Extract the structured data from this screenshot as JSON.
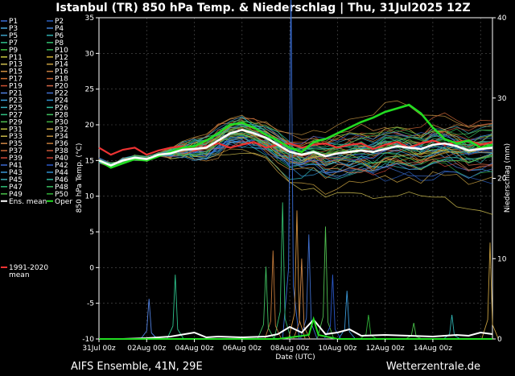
{
  "header": {
    "title": "Istanbul  (TR)  850 hPa Temp. & Niederschlag | Thu, 31Jul2025 12Z"
  },
  "footer": {
    "model": "AIFS Ensemble, 41N, 29E",
    "brand": "Wetterzentrale.de"
  },
  "chart_data": {
    "type": "line",
    "title": "Istanbul  (TR)  850 hPa Temp. & Niederschlag | Thu, 31Jul2025 12Z",
    "xlabel": "Date (UTC)",
    "ylabel_left": "850 hPa Temp. (°C)",
    "ylabel_right": "Niederschlag (mm)",
    "ylim_left": [
      -10,
      35
    ],
    "ylim_right": [
      0,
      40
    ],
    "xlim_days": [
      0,
      16.5
    ],
    "grid": true,
    "legend_placement": "left-outside",
    "x_tick_labels": [
      "31Jul 00z",
      "02Aug 00z",
      "04Aug 00z",
      "06Aug 00z",
      "08Aug 00z",
      "10Aug 00z",
      "12Aug 00z",
      "14Aug 00z"
    ],
    "y_left_ticks": [
      -10,
      -5,
      0,
      5,
      10,
      15,
      20,
      25,
      30,
      35
    ],
    "y_right_ticks": [
      0,
      10,
      20,
      30,
      40
    ],
    "members": [
      "P1",
      "P2",
      "P3",
      "P4",
      "P5",
      "P6",
      "P7",
      "P8",
      "P9",
      "P10",
      "P11",
      "P12",
      "P13",
      "P14",
      "P15",
      "P16",
      "P17",
      "P18",
      "P19",
      "P20",
      "P21",
      "P22",
      "P23",
      "P24",
      "P25",
      "P26",
      "P27",
      "P28",
      "P29",
      "P30",
      "P31",
      "P32",
      "P33",
      "P34",
      "P35",
      "P36",
      "P37",
      "P38",
      "P39",
      "P40",
      "P41",
      "P42",
      "P43",
      "P44",
      "P45",
      "P46",
      "P47",
      "P48",
      "P49",
      "P50"
    ],
    "member_colors": [
      "#3a6fd8",
      "#2a5fc0",
      "#4aa8e0",
      "#3f7fd5",
      "#3ca0c8",
      "#2fb0b0",
      "#2ec08a",
      "#33c070",
      "#40c040",
      "#30b050",
      "#c8c840",
      "#d0b030",
      "#d0c050",
      "#c8a040",
      "#d09040",
      "#c88040",
      "#d07030",
      "#c86030",
      "#d05030",
      "#d86848",
      "#5080e0",
      "#4070d0",
      "#3aa0e0",
      "#2f90d0",
      "#3cb0c0",
      "#2fc0a0",
      "#30c080",
      "#40c060",
      "#50c050",
      "#40b040",
      "#c0c040",
      "#d0a840",
      "#c8b848",
      "#c09040",
      "#d08848",
      "#c07838",
      "#d06838",
      "#c85838",
      "#d04838",
      "#c84030",
      "#3a68d0",
      "#2a58c8",
      "#3a98d8",
      "#3090d0",
      "#40b0b8",
      "#30b8a0",
      "#30c078",
      "#38c060",
      "#48c048",
      "#30b038"
    ],
    "ens_mean_label": "Ens. mean",
    "oper_label": "Oper",
    "clim_label": "1991-2020 mean",
    "ens_mean_color": "#ffffff",
    "oper_color": "#22dd22",
    "clim_color": "#ee3333",
    "ens_mean_temp": [
      [
        0,
        15
      ],
      [
        0.5,
        14.3
      ],
      [
        1,
        15
      ],
      [
        1.5,
        15.4
      ],
      [
        2,
        15.2
      ],
      [
        2.5,
        15.8
      ],
      [
        3,
        16
      ],
      [
        3.5,
        16.5
      ],
      [
        4,
        16.6
      ],
      [
        4.5,
        16.8
      ],
      [
        5,
        17.8
      ],
      [
        5.5,
        18.8
      ],
      [
        6,
        19.3
      ],
      [
        6.5,
        18.8
      ],
      [
        7,
        18.2
      ],
      [
        7.5,
        17.2
      ],
      [
        8,
        16.2
      ],
      [
        8.5,
        15.8
      ],
      [
        9,
        16.2
      ],
      [
        9.5,
        15.6
      ],
      [
        10,
        16
      ],
      [
        10.5,
        16.2
      ],
      [
        11,
        16.4
      ],
      [
        11.5,
        16.2
      ],
      [
        12,
        16.6
      ],
      [
        12.5,
        17
      ],
      [
        13,
        16.8
      ],
      [
        13.5,
        16.6
      ],
      [
        14,
        17.2
      ],
      [
        14.5,
        17.4
      ],
      [
        15,
        17
      ],
      [
        15.5,
        16.4
      ],
      [
        16,
        16.6
      ],
      [
        16.5,
        16.8
      ]
    ],
    "oper_temp": [
      [
        0,
        15
      ],
      [
        0.5,
        14
      ],
      [
        1,
        14.6
      ],
      [
        1.5,
        15.2
      ],
      [
        2,
        15
      ],
      [
        2.5,
        15.6
      ],
      [
        3,
        16.2
      ],
      [
        3.5,
        16.8
      ],
      [
        4,
        17
      ],
      [
        4.5,
        17.8
      ],
      [
        5,
        18.8
      ],
      [
        5.5,
        20
      ],
      [
        6,
        20.3
      ],
      [
        6.5,
        19.6
      ],
      [
        7,
        18.6
      ],
      [
        7.5,
        17.8
      ],
      [
        8,
        16.8
      ],
      [
        8.5,
        16.2
      ],
      [
        9,
        17.6
      ],
      [
        9.5,
        18
      ],
      [
        10,
        18.8
      ],
      [
        10.5,
        19.6
      ],
      [
        11,
        20.4
      ],
      [
        11.5,
        21
      ],
      [
        12,
        21.8
      ],
      [
        12.5,
        22.3
      ],
      [
        13,
        22.8
      ],
      [
        13.5,
        21.6
      ],
      [
        14,
        19.6
      ],
      [
        14.5,
        18
      ],
      [
        15,
        17.4
      ],
      [
        15.5,
        17.8
      ],
      [
        16,
        16.8
      ],
      [
        16.5,
        17.2
      ]
    ],
    "clim_mean_temp": [
      [
        0,
        16.8
      ],
      [
        0.5,
        15.8
      ],
      [
        1,
        16.5
      ],
      [
        1.5,
        16.8
      ],
      [
        2,
        15.8
      ],
      [
        2.5,
        16.4
      ],
      [
        3,
        16.8
      ],
      [
        3.5,
        17
      ],
      [
        4,
        16.4
      ],
      [
        4.5,
        17
      ],
      [
        5,
        17.4
      ],
      [
        5.5,
        16.8
      ],
      [
        6,
        17.2
      ],
      [
        6.5,
        17.6
      ],
      [
        7,
        16.8
      ],
      [
        7.5,
        17.2
      ],
      [
        8,
        17.4
      ],
      [
        8.5,
        16.8
      ],
      [
        9,
        17.2
      ],
      [
        9.5,
        17.4
      ],
      [
        10,
        16.8
      ],
      [
        10.5,
        17.2
      ],
      [
        11,
        17.4
      ],
      [
        11.5,
        16.6
      ],
      [
        12,
        17.2
      ],
      [
        12.5,
        17.6
      ],
      [
        13,
        16.8
      ],
      [
        13.5,
        17.4
      ],
      [
        14,
        17.8
      ],
      [
        14.5,
        17.2
      ],
      [
        15,
        17.6
      ],
      [
        15.5,
        17.8
      ],
      [
        16,
        17.2
      ],
      [
        16.5,
        17.6
      ]
    ],
    "ens_mean_precip": [
      [
        0,
        0
      ],
      [
        1,
        0
      ],
      [
        2,
        0.1
      ],
      [
        3,
        0.3
      ],
      [
        4,
        0.8
      ],
      [
        4.5,
        0.2
      ],
      [
        5,
        0.3
      ],
      [
        6,
        0.2
      ],
      [
        7,
        0.3
      ],
      [
        7.5,
        0.6
      ],
      [
        8,
        1.5
      ],
      [
        8.5,
        0.8
      ],
      [
        9,
        2.4
      ],
      [
        9.5,
        0.6
      ],
      [
        10,
        0.8
      ],
      [
        10.5,
        1.2
      ],
      [
        11,
        0.4
      ],
      [
        12,
        0.5
      ],
      [
        13,
        0.4
      ],
      [
        14,
        0.3
      ],
      [
        15,
        0.5
      ],
      [
        15.5,
        0.4
      ],
      [
        16,
        0.8
      ],
      [
        16.5,
        0.6
      ]
    ],
    "oper_precip": [
      [
        0,
        0
      ],
      [
        2,
        0
      ],
      [
        4,
        0
      ],
      [
        6,
        0
      ],
      [
        7.5,
        0
      ],
      [
        8.8,
        0.5
      ],
      [
        9,
        2.5
      ],
      [
        9.2,
        0.5
      ],
      [
        10,
        0
      ],
      [
        12,
        0
      ],
      [
        14,
        0
      ],
      [
        16.5,
        0
      ]
    ],
    "member_precip_spikes": [
      [
        8.05,
        44
      ],
      [
        7.7,
        17
      ],
      [
        8.3,
        16
      ],
      [
        8.8,
        13
      ],
      [
        9.5,
        14
      ],
      [
        7.3,
        11
      ],
      [
        10.4,
        6
      ],
      [
        11.3,
        3
      ],
      [
        3.2,
        8
      ],
      [
        16.4,
        12
      ],
      [
        2.1,
        5
      ],
      [
        7.0,
        9
      ],
      [
        8.5,
        10
      ],
      [
        9.8,
        8
      ],
      [
        13.2,
        2
      ],
      [
        14.8,
        3
      ]
    ]
  }
}
